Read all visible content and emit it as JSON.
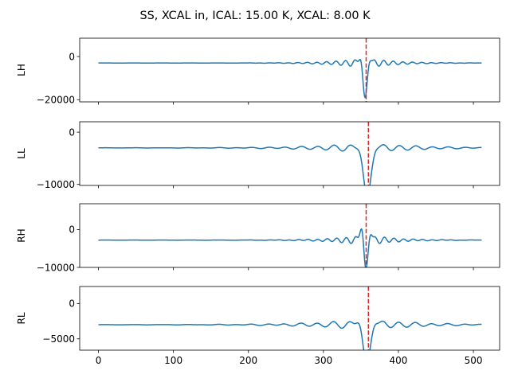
{
  "figure": {
    "title": "SS, XCAL in, ICAL: 15.00 K, XCAL: 8.00 K"
  },
  "chart_data": [
    {
      "type": "line",
      "ylabel": "LH",
      "xlim": [
        -25,
        535
      ],
      "ylim": [
        -21000,
        8500
      ],
      "yticks": [
        0,
        -20000
      ],
      "ytick_labels": [
        "0",
        "−20000"
      ],
      "show_xtick_labels": false,
      "series": [
        {
          "color": "#1f77b4",
          "baseline": -3000,
          "center": 355,
          "amp_pos": 7000,
          "amp_neg": -18500,
          "width": 7,
          "ripple": 2500,
          "ripple_decay": 35
        }
      ],
      "marker_line": {
        "x": 357,
        "color": "#d62728",
        "style": "dashed"
      }
    },
    {
      "type": "line",
      "ylabel": "LL",
      "xlim": [
        -25,
        535
      ],
      "ylim": [
        -10200,
        2000
      ],
      "yticks": [
        0,
        -10000
      ],
      "ytick_labels": [
        "0",
        "−10000"
      ],
      "show_xtick_labels": false,
      "series": [
        {
          "color": "#1f77b4",
          "baseline": -3000,
          "center": 358,
          "amp_pos": 1400,
          "amp_neg": -9700,
          "width": 12,
          "ripple": 1000,
          "ripple_decay": 60
        }
      ],
      "marker_line": {
        "x": 360,
        "color": "#d62728",
        "style": "dashed"
      }
    },
    {
      "type": "line",
      "ylabel": "RH",
      "xlim": [
        -25,
        535
      ],
      "ylim": [
        -10000,
        6800
      ],
      "yticks": [
        0,
        -10000
      ],
      "ytick_labels": [
        "0",
        "−10000"
      ],
      "show_xtick_labels": false,
      "series": [
        {
          "color": "#1f77b4",
          "baseline": -2800,
          "center": 356,
          "amp_pos": 6300,
          "amp_neg": -9700,
          "width": 7,
          "ripple": 1500,
          "ripple_decay": 35
        }
      ],
      "marker_line": {
        "x": 357,
        "color": "#d62728",
        "style": "dashed"
      }
    },
    {
      "type": "line",
      "ylabel": "RL",
      "xlim": [
        -25,
        535
      ],
      "ylim": [
        -6600,
        2400
      ],
      "yticks": [
        0,
        -5000
      ],
      "ytick_labels": [
        "0",
        "−5000"
      ],
      "xticks": [
        0,
        100,
        200,
        300,
        400,
        500
      ],
      "xtick_labels": [
        "0",
        "100",
        "200",
        "300",
        "400",
        "500"
      ],
      "show_xtick_labels": true,
      "series": [
        {
          "color": "#1f77b4",
          "baseline": -3000,
          "center": 357,
          "amp_pos": 1800,
          "amp_neg": -6100,
          "width": 12,
          "ripple": 800,
          "ripple_decay": 60
        }
      ],
      "marker_line": {
        "x": 360,
        "color": "#d62728",
        "style": "dashed"
      }
    }
  ]
}
